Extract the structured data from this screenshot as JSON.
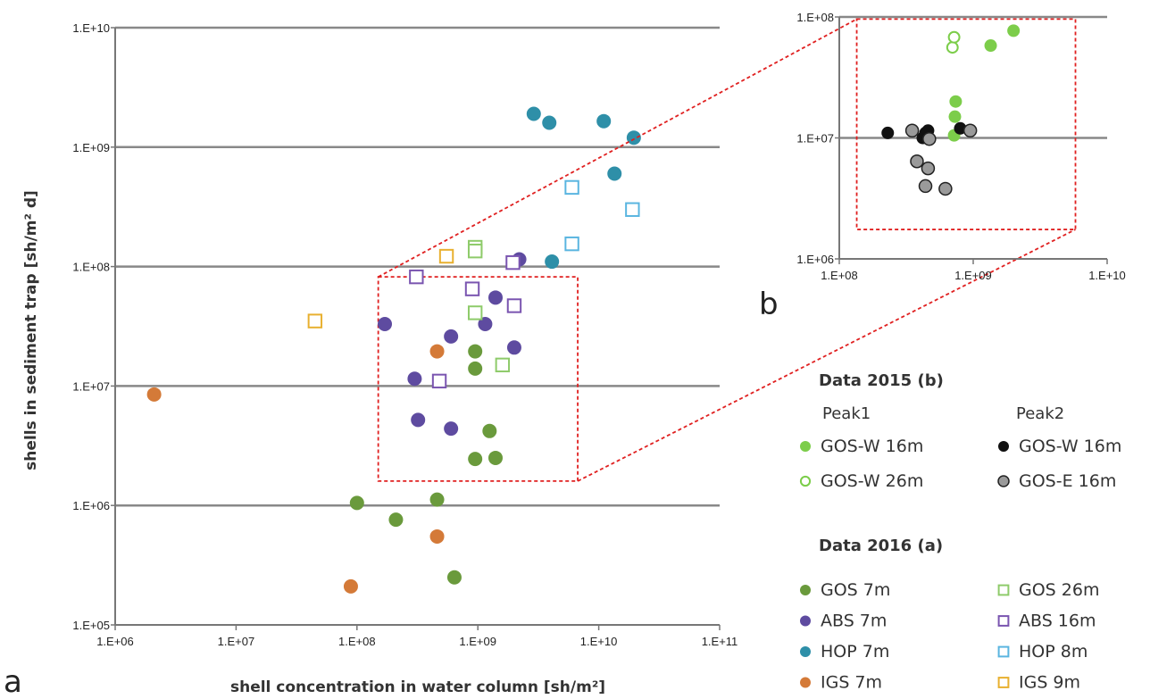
{
  "colors": {
    "gos_2015_peak1": "#7ccd4a",
    "gos_w_16m_peak2": "#111111",
    "gos_e_16m_peak2": "#9a9a9a",
    "gos_2016": "#6a9a3c",
    "abs": "#5e4ba0",
    "hop": "#2e8fa8",
    "igs": "#d47a38",
    "gos_26m": "#8ecb6a",
    "abs_16m": "#7a55b0",
    "hop_8m": "#5ab5e0",
    "igs_9m": "#e8b030",
    "zoom_box": "#e02020"
  },
  "chart_data": [
    {
      "type": "scatter",
      "panel_label": "a",
      "xlabel": "shell concentration in water column [sh/m²]",
      "ylabel": "shells in sediment trap [sh/m² d]",
      "x_scale": "log",
      "y_scale": "log",
      "xlim": [
        1000000,
        100000000000
      ],
      "ylim": [
        100000,
        10000000000
      ],
      "x_ticks": [
        "1.E+06",
        "1.E+07",
        "1.E+08",
        "1.E+09",
        "1.E+10",
        "1.E+11"
      ],
      "y_ticks": [
        "1.E+05",
        "1.E+06",
        "1.E+07",
        "1.E+08",
        "1.E+09",
        "1.E+10"
      ],
      "grid": "horizontal",
      "zoom_box": {
        "x": [
          150000000,
          6700000000
        ],
        "y": [
          1600000,
          82000000
        ]
      },
      "series": [
        {
          "name": "GOS 7m",
          "marker": "filled",
          "color_key": "gos_2016",
          "points": [
            [
              100000000,
              1050000
            ],
            [
              210000000,
              760000
            ],
            [
              460000000,
              1120000
            ],
            [
              640000000,
              250000
            ],
            [
              950000000,
              2450000
            ],
            [
              950000000,
              14000000
            ],
            [
              950000000,
              19500000
            ],
            [
              1250000000,
              4200000
            ],
            [
              1400000000,
              2500000
            ]
          ]
        },
        {
          "name": "ABS 7m",
          "marker": "filled",
          "color_key": "abs",
          "points": [
            [
              170000000,
              33000000
            ],
            [
              300000000,
              11500000
            ],
            [
              320000000,
              5200000
            ],
            [
              600000000,
              26000000
            ],
            [
              600000000,
              4400000
            ],
            [
              1150000000,
              33000000
            ],
            [
              1400000000,
              55000000
            ],
            [
              2000000000,
              21000000
            ],
            [
              2200000000,
              115000000
            ]
          ]
        },
        {
          "name": "HOP 7m",
          "marker": "filled",
          "color_key": "hop",
          "points": [
            [
              2900000000,
              1900000000
            ],
            [
              3900000000,
              1600000000
            ],
            [
              4100000000,
              110000000
            ],
            [
              11000000000,
              1650000000
            ],
            [
              13500000000,
              600000000
            ],
            [
              19500000000,
              1200000000
            ]
          ]
        },
        {
          "name": "IGS 7m",
          "marker": "filled",
          "color_key": "igs",
          "points": [
            [
              2100000,
              8500000
            ],
            [
              89000000,
              210000
            ],
            [
              460000000,
              550000
            ],
            [
              460000000,
              19500000
            ]
          ]
        },
        {
          "name": "GOS 26m",
          "marker": "open-square",
          "color_key": "gos_26m",
          "points": [
            [
              950000000,
              145000000
            ],
            [
              950000000,
              135000000
            ],
            [
              950000000,
              41000000
            ],
            [
              1600000000,
              15000000
            ]
          ]
        },
        {
          "name": "ABS 16m",
          "marker": "open-square",
          "color_key": "abs_16m",
          "points": [
            [
              310000000,
              82000000
            ],
            [
              480000000,
              11000000
            ],
            [
              900000000,
              65000000
            ],
            [
              1950000000,
              108000000
            ],
            [
              2000000000,
              47000000
            ]
          ]
        },
        {
          "name": "HOP 8m",
          "marker": "open-square",
          "color_key": "hop_8m",
          "points": [
            [
              6000000000,
              460000000
            ],
            [
              6000000000,
              155000000
            ],
            [
              19000000000,
              300000000
            ]
          ]
        },
        {
          "name": "IGS 9m",
          "marker": "open-square",
          "color_key": "igs_9m",
          "points": [
            [
              45000000,
              35000000
            ],
            [
              550000000,
              122000000
            ]
          ]
        }
      ]
    },
    {
      "type": "scatter",
      "panel_label": "b",
      "x_scale": "log",
      "y_scale": "log",
      "xlim": [
        100000000,
        10000000000
      ],
      "ylim": [
        1000000,
        100000000
      ],
      "x_ticks": [
        "1.E+08",
        "1.E+09",
        "1.E+10"
      ],
      "y_ticks": [
        "1.E+06",
        "1.E+07",
        "1.E+08"
      ],
      "grid": "horizontal",
      "zoom_box": {
        "x": [
          135000000,
          5800000000
        ],
        "y": [
          1750000,
          96000000
        ]
      },
      "series": [
        {
          "name": "GOS-W 16m",
          "group": "Peak1",
          "marker": "filled",
          "color_key": "gos_2015_peak1",
          "points": [
            [
              720000000,
              10500000
            ],
            [
              730000000,
              15000000
            ],
            [
              740000000,
              20000000
            ],
            [
              1350000000,
              58000000
            ],
            [
              2000000000,
              77000000
            ]
          ]
        },
        {
          "name": "GOS-W 26m",
          "group": "Peak1",
          "marker": "open-circle",
          "color_key": "gos_2015_peak1",
          "points": [
            [
              700000000,
              56000000
            ],
            [
              720000000,
              68000000
            ]
          ]
        },
        {
          "name": "GOS-W 16m",
          "group": "Peak2",
          "marker": "filled",
          "color_key": "gos_w_16m_peak2",
          "points": [
            [
              230000000,
              11000000
            ],
            [
              420000000,
              10000000
            ],
            [
              440000000,
              11000000
            ],
            [
              460000000,
              11500000
            ],
            [
              800000000,
              12000000
            ]
          ]
        },
        {
          "name": "GOS-E 16m",
          "group": "Peak2",
          "marker": "filled",
          "color_key": "gos_e_16m_peak2",
          "points": [
            [
              350000000,
              11500000
            ],
            [
              380000000,
              6400000
            ],
            [
              440000000,
              4000000
            ],
            [
              460000000,
              5600000
            ],
            [
              470000000,
              9800000
            ],
            [
              620000000,
              3800000
            ],
            [
              950000000,
              11500000
            ]
          ]
        }
      ]
    }
  ],
  "legend": {
    "data2015_title": "Data 2015 (b)",
    "peak1_label": "Peak1",
    "peak2_label": "Peak2",
    "items_2015": [
      {
        "label": "GOS-W 16m",
        "marker": "filled",
        "color_key": "gos_2015_peak1"
      },
      {
        "label": "GOS-W 16m",
        "marker": "filled",
        "color_key": "gos_w_16m_peak2"
      },
      {
        "label": "GOS-W 26m",
        "marker": "open-circle",
        "color_key": "gos_2015_peak1"
      },
      {
        "label": "GOS-E 16m",
        "marker": "filled",
        "color_key": "gos_e_16m_peak2"
      }
    ],
    "data2016_title": "Data 2016 (a)",
    "items_2016": [
      {
        "label": "GOS 7m",
        "marker": "filled",
        "color_key": "gos_2016"
      },
      {
        "label": "GOS 26m",
        "marker": "open-square",
        "color_key": "gos_26m"
      },
      {
        "label": "ABS 7m",
        "marker": "filled",
        "color_key": "abs"
      },
      {
        "label": "ABS 16m",
        "marker": "open-square",
        "color_key": "abs_16m"
      },
      {
        "label": "HOP 7m",
        "marker": "filled",
        "color_key": "hop"
      },
      {
        "label": "HOP 8m",
        "marker": "open-square",
        "color_key": "hop_8m"
      },
      {
        "label": "IGS 7m",
        "marker": "filled",
        "color_key": "igs"
      },
      {
        "label": "IGS 9m",
        "marker": "open-square",
        "color_key": "igs_9m"
      }
    ]
  }
}
